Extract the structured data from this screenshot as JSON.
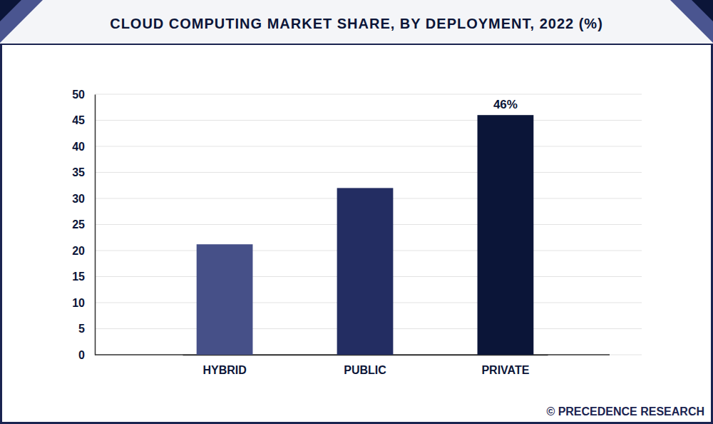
{
  "chart_data": {
    "type": "bar",
    "title": "CLOUD COMPUTING MARKET SHARE, BY DEPLOYMENT, 2022 (%)",
    "categories": [
      "HYBRID",
      "PUBLIC",
      "PRIVATE"
    ],
    "values": [
      21.2,
      32.0,
      46
    ],
    "value_labels": [
      null,
      null,
      "46%"
    ],
    "data_labels": true,
    "colors": [
      "#465088",
      "#232d62",
      "#0b1538"
    ],
    "ylim": [
      0,
      50
    ],
    "yticks": [
      0,
      5,
      10,
      15,
      20,
      25,
      30,
      35,
      40,
      45,
      50
    ],
    "grid": true,
    "source": "© PRECEDENCE RESEARCH"
  }
}
